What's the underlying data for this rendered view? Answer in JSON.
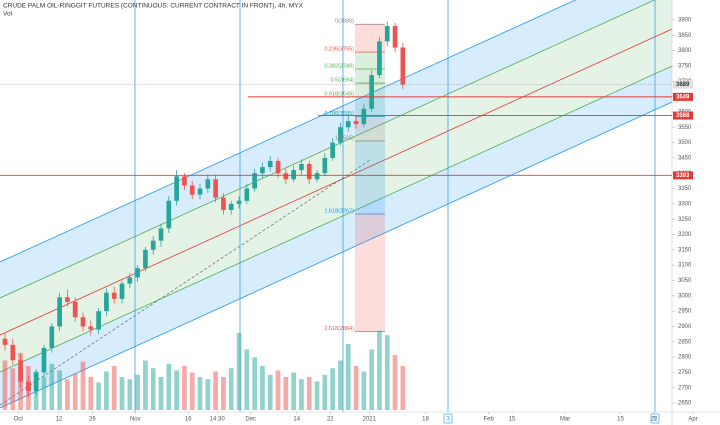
{
  "chart_data": {
    "type": "candlestick",
    "title": "CRUDE PALM OIL-RINGGIT FUTURES (CONTINUOUS: CURRENT CONTRACT IN FRONT), 4h, MYX",
    "volume_label": "Vol",
    "up_color": "#26a69a",
    "down_color": "#ef5350",
    "open": [
      2860,
      2840,
      2790,
      2720,
      2690,
      2750,
      2830,
      2900,
      2995,
      2980,
      2930,
      2900,
      2890,
      2950,
      3010,
      2990,
      3040,
      3060,
      3090,
      3150,
      3180,
      3220,
      3310,
      3390,
      3360,
      3330,
      3350,
      3380,
      3320,
      3280,
      3300,
      3310,
      3350,
      3400,
      3420,
      3440,
      3400,
      3380,
      3410,
      3430,
      3380,
      3400,
      3450,
      3500,
      3550,
      3570,
      3560,
      3610,
      3720,
      3830,
      3880,
      3810
    ],
    "high": [
      2880,
      2860,
      2810,
      2740,
      2760,
      2840,
      2910,
      3010,
      3020,
      2995,
      2945,
      2920,
      2960,
      3025,
      3030,
      3050,
      3075,
      3100,
      3160,
      3195,
      3235,
      3325,
      3410,
      3400,
      3375,
      3365,
      3395,
      3395,
      3335,
      3310,
      3325,
      3365,
      3415,
      3435,
      3455,
      3450,
      3415,
      3425,
      3445,
      3440,
      3410,
      3465,
      3515,
      3565,
      3590,
      3585,
      3625,
      3735,
      3845,
      3895,
      3890,
      3825
    ],
    "low": [
      2820,
      2775,
      2700,
      2670,
      2675,
      2735,
      2815,
      2885,
      2965,
      2915,
      2885,
      2870,
      2875,
      2935,
      2975,
      2975,
      3025,
      3045,
      3080,
      3135,
      3160,
      3205,
      3295,
      3345,
      3315,
      3315,
      3335,
      3305,
      3265,
      3265,
      3285,
      3300,
      3340,
      3385,
      3405,
      3385,
      3365,
      3370,
      3395,
      3365,
      3370,
      3390,
      3440,
      3490,
      3535,
      3545,
      3550,
      3600,
      3710,
      3815,
      3795,
      3675
    ],
    "close": [
      2840,
      2790,
      2720,
      2690,
      2750,
      2830,
      2900,
      2995,
      2980,
      2930,
      2900,
      2890,
      2950,
      3010,
      2990,
      3040,
      3060,
      3090,
      3150,
      3180,
      3220,
      3310,
      3390,
      3360,
      3330,
      3350,
      3380,
      3320,
      3280,
      3300,
      3310,
      3350,
      3400,
      3420,
      3440,
      3400,
      3380,
      3410,
      3430,
      3380,
      3400,
      3450,
      3500,
      3550,
      3570,
      3560,
      3610,
      3720,
      3830,
      3880,
      3810,
      3689
    ],
    "volume": [
      45,
      38,
      52,
      40,
      35,
      30,
      42,
      36,
      28,
      33,
      44,
      30,
      25,
      35,
      40,
      30,
      28,
      32,
      45,
      38,
      30,
      42,
      36,
      40,
      34,
      30,
      28,
      35,
      30,
      38,
      70,
      55,
      48,
      40,
      32,
      36,
      30,
      34,
      28,
      30,
      26,
      32,
      38,
      45,
      60,
      40,
      35,
      55,
      72,
      68,
      50,
      40
    ],
    "vlim": [
      0,
      100
    ],
    "xlim": [
      -0.64,
      85.5
    ],
    "xticks": [
      {
        "value": 1.7,
        "label": "Oct"
      },
      {
        "value": 6.9,
        "label": "12"
      },
      {
        "value": 11.2,
        "label": "26"
      },
      {
        "value": 16.7,
        "label": "Nov"
      },
      {
        "value": 23.5,
        "label": "16"
      },
      {
        "value": 27.2,
        "label": "14:30"
      },
      {
        "value": 31.5,
        "label": "Dec"
      },
      {
        "value": 37.4,
        "label": "14"
      },
      {
        "value": 41.7,
        "label": "22"
      },
      {
        "value": 46.7,
        "label": "2021"
      },
      {
        "value": 53.9,
        "label": "18"
      },
      {
        "value": 62,
        "label": "Feb"
      },
      {
        "value": 65,
        "label": "15"
      },
      {
        "value": 71.8,
        "label": "Mar"
      },
      {
        "value": 78.9,
        "label": "15"
      },
      {
        "value": 83.2,
        "label": "22"
      },
      {
        "value": 88.2,
        "label": "Apr"
      }
    ],
    "ylim": [
      2621,
      3965
    ],
    "yticks": [
      3900,
      3850,
      3800,
      3750,
      3700,
      3650,
      3600,
      3550,
      3500,
      3450,
      3400,
      3350,
      3300,
      3250,
      3200,
      3150,
      3100,
      3050,
      3000,
      2950,
      2900,
      2850,
      2800,
      2750,
      2700,
      2650
    ],
    "fib_levels": [
      {
        "label": "0(3886)",
        "value": 3886,
        "color": "#888888"
      },
      {
        "label": "0.236(3795)",
        "value": 3795,
        "color": "#ef5350"
      },
      {
        "label": "0.382(3740)",
        "value": 3740,
        "color": "#4caf50"
      },
      {
        "label": "0.5(3694)",
        "value": 3694,
        "color": "#4caf50"
      },
      {
        "label": "0.618(3649)",
        "value": 3649,
        "color": "#4caf50"
      },
      {
        "label": "0.786(3585)",
        "value": 3585,
        "color": "#26a69a"
      },
      {
        "label": "1(3505)",
        "value": 3505,
        "color": "#888888"
      },
      {
        "label": "1.618(3267)",
        "value": 3267,
        "color": "#2196f3"
      },
      {
        "label": "2.618(2884)",
        "value": 2884,
        "color": "#ef5350"
      }
    ],
    "price_lines": [
      3649,
      3588,
      3393
    ],
    "line_color": "#e53935",
    "last_price": 3689,
    "time_markers": [
      "3",
      "5"
    ]
  }
}
